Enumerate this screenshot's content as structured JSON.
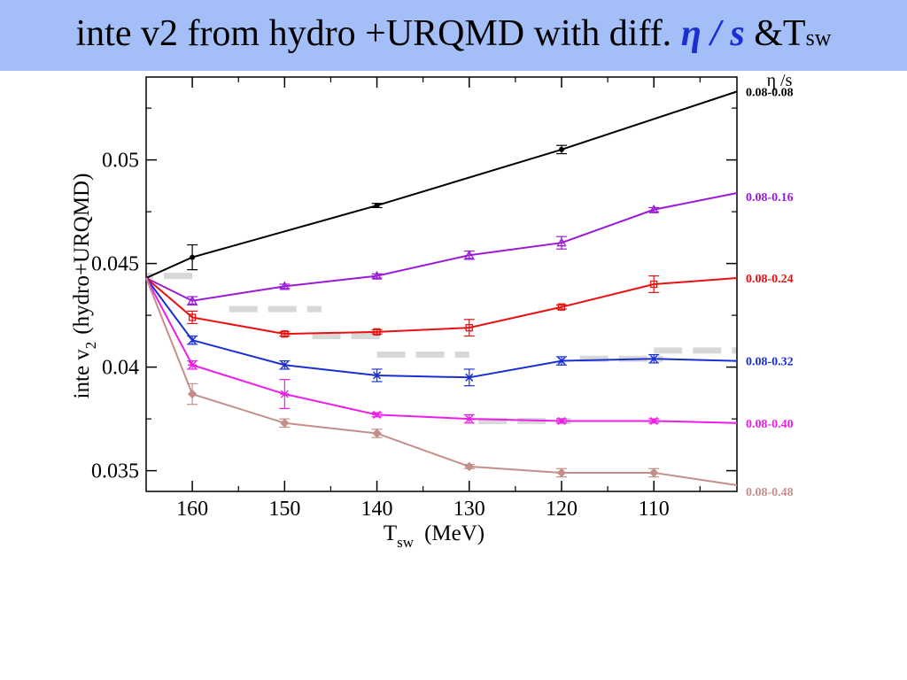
{
  "slide": {
    "title_main": "inte v2 from hydro +URQMD with diff.",
    "title_eta": "η / s",
    "title_suffix": "&T",
    "title_suffix_sub": "sw"
  },
  "chart_data": {
    "type": "line",
    "xlabel": "T",
    "xlabel_sub": "sw",
    "xlabel_unit": "(MeV)",
    "ylabel_pre": "inte v",
    "ylabel_sub": "2",
    "ylabel_post": "(hydro+URQMD)",
    "legend_title": "η /s",
    "xlim": [
      165,
      101
    ],
    "ylim": [
      0.034,
      0.054
    ],
    "x_reversed": true,
    "x_ticks": [
      160,
      150,
      140,
      130,
      120,
      110
    ],
    "x_tick_labels": [
      "160",
      "150",
      "140",
      "130",
      "120",
      "110"
    ],
    "y_ticks": [
      0.035,
      0.04,
      0.045,
      0.05
    ],
    "y_tick_labels": [
      "0.035",
      "0.04",
      "0.045",
      "0.05"
    ],
    "x": [
      165,
      160,
      150,
      140,
      130,
      120,
      110,
      101
    ],
    "series": [
      {
        "name": "0.08-0.08",
        "color": "#000000",
        "marker": "dot",
        "x": [
          165,
          160,
          140,
          120,
          101
        ],
        "values": [
          0.0443,
          0.0453,
          0.0478,
          0.0505,
          0.0533
        ],
        "errors": [
          0,
          0.0006,
          0.0001,
          0.0002,
          0
        ]
      },
      {
        "name": "0.08-0.16",
        "color": "#9a1ad6",
        "marker": "triangle",
        "x": [
          165,
          160,
          150,
          140,
          130,
          120,
          110,
          101
        ],
        "values": [
          0.0443,
          0.0432,
          0.0439,
          0.0444,
          0.0454,
          0.046,
          0.0476,
          0.0484
        ],
        "errors": [
          0,
          0.0002,
          0.0001,
          0.0001,
          0.0002,
          0.0003,
          0.0001,
          0
        ]
      },
      {
        "name": "0.08-0.24",
        "color": "#e81010",
        "marker": "square",
        "x": [
          165,
          160,
          150,
          140,
          130,
          120,
          110,
          101
        ],
        "values": [
          0.0443,
          0.0424,
          0.0416,
          0.0417,
          0.0419,
          0.0429,
          0.044,
          0.0443
        ],
        "errors": [
          0,
          0.0003,
          0.0001,
          0.0001,
          0.0004,
          0.0001,
          0.0004,
          0
        ]
      },
      {
        "name": "0.08-0.32",
        "color": "#1a2fcf",
        "marker": "x",
        "x": [
          165,
          160,
          150,
          140,
          130,
          120,
          110,
          101
        ],
        "values": [
          0.0443,
          0.0413,
          0.0401,
          0.0396,
          0.0395,
          0.0403,
          0.0404,
          0.0403
        ],
        "errors": [
          0,
          0.0002,
          0.0002,
          0.0003,
          0.0004,
          0.0002,
          0.0002,
          0
        ]
      },
      {
        "name": "0.08-0.40",
        "color": "#ee1de8",
        "marker": "star",
        "x": [
          165,
          160,
          150,
          140,
          130,
          120,
          110,
          101
        ],
        "values": [
          0.0443,
          0.0401,
          0.0387,
          0.0377,
          0.0375,
          0.0374,
          0.0374,
          0.0373
        ],
        "errors": [
          0,
          0.0002,
          0.0007,
          0.0001,
          0.0002,
          0.0001,
          0.0001,
          0
        ]
      },
      {
        "name": "0.08-0.48",
        "color": "#c48f8a",
        "marker": "diamond",
        "x": [
          165,
          160,
          150,
          140,
          130,
          120,
          110,
          101
        ],
        "values": [
          0.0443,
          0.0387,
          0.0373,
          0.0368,
          0.0352,
          0.0349,
          0.0349,
          0.0343
        ],
        "errors": [
          0,
          0.0005,
          0.0002,
          0.0002,
          0.0001,
          0.0002,
          0.0002,
          0
        ]
      }
    ],
    "grid": false,
    "legend": "right"
  }
}
